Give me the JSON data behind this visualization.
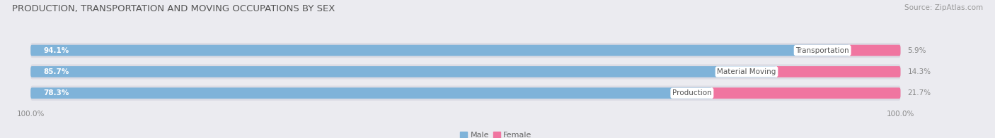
{
  "title": "PRODUCTION, TRANSPORTATION AND MOVING OCCUPATIONS BY SEX",
  "source": "Source: ZipAtlas.com",
  "categories": [
    "Transportation",
    "Material Moving",
    "Production"
  ],
  "male_values": [
    94.1,
    85.7,
    78.3
  ],
  "female_values": [
    5.9,
    14.3,
    21.7
  ],
  "male_color": "#7fb3d9",
  "female_color": "#f075a0",
  "bg_color": "#ebebf0",
  "bar_bg_color": "#dcdce4",
  "title_fontsize": 9.5,
  "source_fontsize": 7.5,
  "axis_label_fontsize": 7.5,
  "bar_label_fontsize": 7.5,
  "category_fontsize": 7.5,
  "female_label_fontsize": 7.5,
  "bar_height": 0.52,
  "bar_gap": 0.3,
  "xlim_left": -2,
  "xlim_right": 102
}
